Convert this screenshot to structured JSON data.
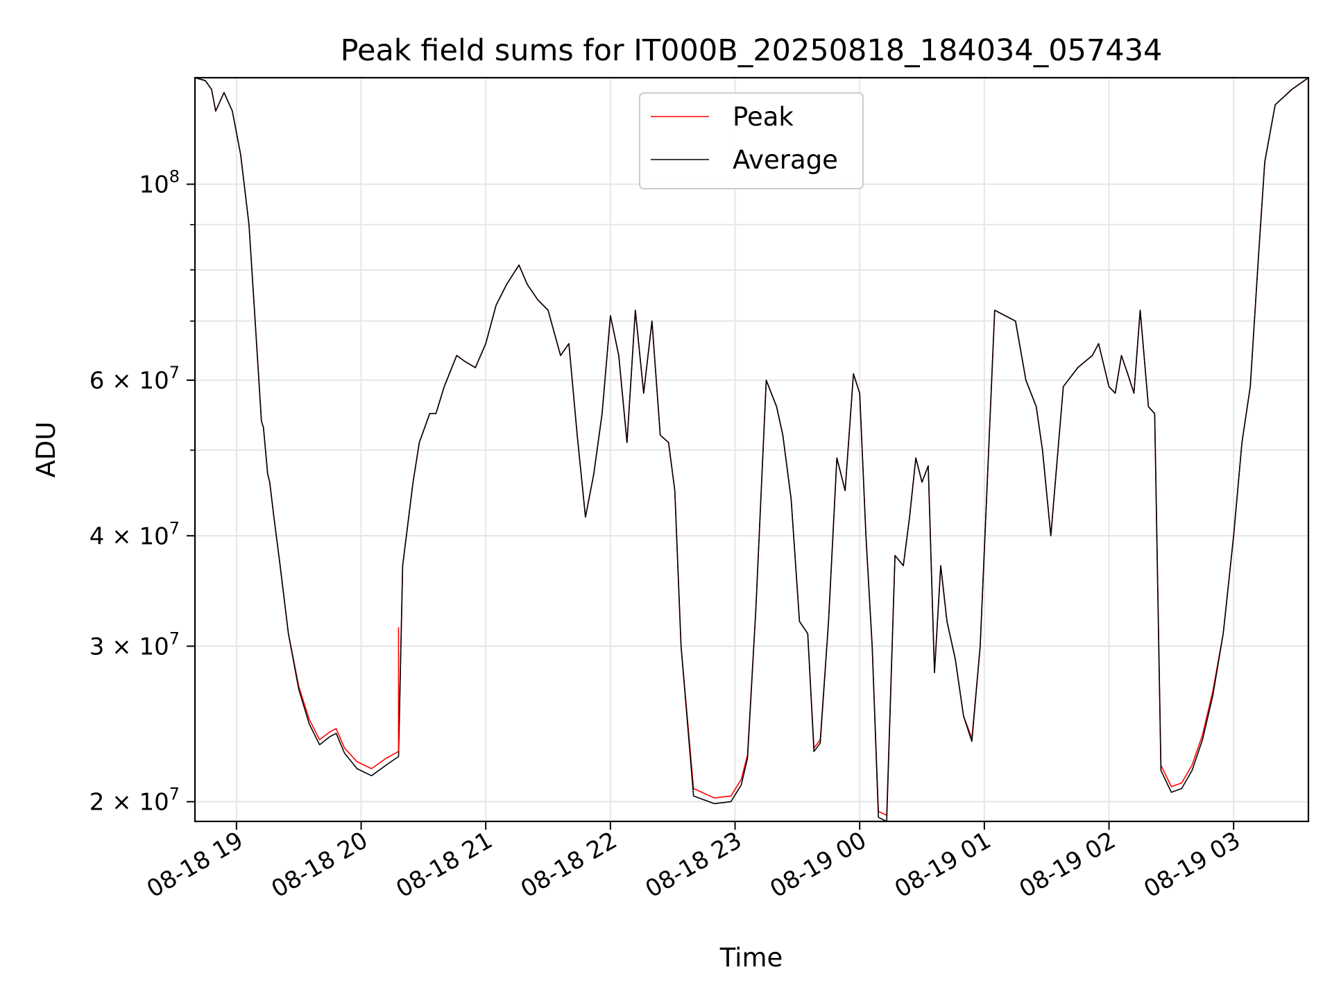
{
  "chart_data": {
    "type": "line",
    "title": "Peak field sums for IT000B_20250818_184034_057434",
    "xlabel": "Time",
    "ylabel": "ADU",
    "y_scale": "log",
    "ylim": [
      19000000,
      132000000
    ],
    "xlim": [
      "2025-08-18 18:40",
      "2025-08-19 03:36"
    ],
    "grid": true,
    "legend_position": "top-center",
    "x_ticks": [
      {
        "value": "2025-08-18 19:00",
        "label": "08-18 19"
      },
      {
        "value": "2025-08-18 20:00",
        "label": "08-18 20"
      },
      {
        "value": "2025-08-18 21:00",
        "label": "08-18 21"
      },
      {
        "value": "2025-08-18 22:00",
        "label": "08-18 22"
      },
      {
        "value": "2025-08-18 23:00",
        "label": "08-18 23"
      },
      {
        "value": "2025-08-19 00:00",
        "label": "08-19 00"
      },
      {
        "value": "2025-08-19 01:00",
        "label": "08-19 01"
      },
      {
        "value": "2025-08-19 02:00",
        "label": "08-19 02"
      },
      {
        "value": "2025-08-19 03:00",
        "label": "08-19 03"
      }
    ],
    "y_ticks": [
      {
        "value": 20000000,
        "mantissa": "2 × ",
        "base": "10",
        "exp": "7"
      },
      {
        "value": 30000000,
        "mantissa": "3 × ",
        "base": "10",
        "exp": "7"
      },
      {
        "value": 40000000,
        "mantissa": "4 × ",
        "base": "10",
        "exp": "7"
      },
      {
        "value": 60000000,
        "mantissa": "6 × ",
        "base": "10",
        "exp": "7"
      },
      {
        "value": 100000000,
        "mantissa": "",
        "base": "10",
        "exp": "8"
      }
    ],
    "x": [
      "2025-08-18 18:40",
      "2025-08-18 18:45",
      "2025-08-18 18:48",
      "2025-08-18 18:50",
      "2025-08-18 18:54",
      "2025-08-18 18:58",
      "2025-08-18 19:02",
      "2025-08-18 19:06",
      "2025-08-18 19:09",
      "2025-08-18 19:12",
      "2025-08-18 19:13",
      "2025-08-18 19:15",
      "2025-08-18 19:16",
      "2025-08-18 19:18",
      "2025-08-18 19:21",
      "2025-08-18 19:25",
      "2025-08-18 19:30",
      "2025-08-18 19:35",
      "2025-08-18 19:40",
      "2025-08-18 19:45",
      "2025-08-18 19:48",
      "2025-08-18 19:52",
      "2025-08-18 19:58",
      "2025-08-18 20:05",
      "2025-08-18 20:12",
      "2025-08-18 20:18",
      "2025-08-18 20:20",
      "2025-08-18 20:25",
      "2025-08-18 20:28",
      "2025-08-18 20:33",
      "2025-08-18 20:36",
      "2025-08-18 20:40",
      "2025-08-18 20:46",
      "2025-08-18 20:50",
      "2025-08-18 20:55",
      "2025-08-18 21:00",
      "2025-08-18 21:05",
      "2025-08-18 21:10",
      "2025-08-18 21:16",
      "2025-08-18 21:20",
      "2025-08-18 21:25",
      "2025-08-18 21:30",
      "2025-08-18 21:36",
      "2025-08-18 21:40",
      "2025-08-18 21:44",
      "2025-08-18 21:48",
      "2025-08-18 21:52",
      "2025-08-18 21:56",
      "2025-08-18 22:00",
      "2025-08-18 22:04",
      "2025-08-18 22:08",
      "2025-08-18 22:12",
      "2025-08-18 22:16",
      "2025-08-18 22:20",
      "2025-08-18 22:24",
      "2025-08-18 22:28",
      "2025-08-18 22:31",
      "2025-08-18 22:34",
      "2025-08-18 22:40",
      "2025-08-18 22:50",
      "2025-08-18 22:58",
      "2025-08-18 23:03",
      "2025-08-18 23:06",
      "2025-08-18 23:10",
      "2025-08-18 23:15",
      "2025-08-18 23:20",
      "2025-08-18 23:23",
      "2025-08-18 23:27",
      "2025-08-18 23:31",
      "2025-08-18 23:35",
      "2025-08-18 23:38",
      "2025-08-18 23:41",
      "2025-08-18 23:45",
      "2025-08-18 23:49",
      "2025-08-18 23:53",
      "2025-08-18 23:57",
      "2025-08-19 00:00",
      "2025-08-19 00:03",
      "2025-08-19 00:06",
      "2025-08-19 00:09",
      "2025-08-19 00:13",
      "2025-08-19 00:17",
      "2025-08-19 00:21",
      "2025-08-19 00:24",
      "2025-08-19 00:27",
      "2025-08-19 00:30",
      "2025-08-19 00:33",
      "2025-08-19 00:36",
      "2025-08-19 00:39",
      "2025-08-19 00:42",
      "2025-08-19 00:46",
      "2025-08-19 00:50",
      "2025-08-19 00:54",
      "2025-08-19 00:58",
      "2025-08-19 01:05",
      "2025-08-19 01:10",
      "2025-08-19 01:15",
      "2025-08-19 01:20",
      "2025-08-19 01:25",
      "2025-08-19 01:28",
      "2025-08-19 01:32",
      "2025-08-19 01:38",
      "2025-08-19 01:45",
      "2025-08-19 01:52",
      "2025-08-19 01:55",
      "2025-08-19 02:00",
      "2025-08-19 02:03",
      "2025-08-19 02:06",
      "2025-08-19 02:09",
      "2025-08-19 02:12",
      "2025-08-19 02:15",
      "2025-08-19 02:19",
      "2025-08-19 02:22",
      "2025-08-19 02:25",
      "2025-08-19 02:30",
      "2025-08-19 02:35",
      "2025-08-19 02:40",
      "2025-08-19 02:45",
      "2025-08-19 02:50",
      "2025-08-19 02:55",
      "2025-08-19 03:00",
      "2025-08-19 03:04",
      "2025-08-19 03:08",
      "2025-08-19 03:12",
      "2025-08-19 03:15",
      "2025-08-19 03:20",
      "2025-08-19 03:28",
      "2025-08-19 03:36"
    ],
    "series": [
      {
        "name": "Peak",
        "color": "#ff0000",
        "values": [
          132000000,
          131000000,
          128000000,
          121000000,
          127000000,
          121000000,
          108000000,
          90000000,
          70000000,
          54000000,
          53000000,
          47000000,
          46000000,
          42000000,
          37000000,
          31000000,
          27000000,
          24800000,
          23500000,
          24000000,
          24200000,
          23000000,
          22200000,
          21800000,
          22400000,
          22800000,
          37000000,
          46000000,
          51000000,
          55000000,
          55000000,
          59000000,
          64000000,
          63000000,
          62000000,
          66000000,
          73000000,
          77000000,
          81000000,
          77000000,
          74000000,
          72000000,
          64000000,
          66000000,
          52000000,
          42000000,
          47000000,
          55000000,
          71000000,
          64000000,
          51000000,
          72000000,
          58000000,
          70000000,
          52000000,
          51000000,
          45000000,
          30000000,
          20700000,
          20200000,
          20300000,
          21200000,
          22600000,
          33000000,
          60000000,
          56000000,
          52000000,
          44000000,
          32000000,
          31000000,
          23000000,
          23500000,
          32000000,
          49000000,
          45000000,
          61000000,
          58000000,
          40000000,
          30000000,
          19500000,
          19300000,
          38000000,
          37000000,
          42000000,
          49000000,
          46000000,
          48000000,
          28000000,
          37000000,
          32000000,
          29000000,
          25000000,
          23600000,
          30000000,
          72000000,
          71000000,
          70000000,
          60000000,
          56000000,
          50000000,
          40000000,
          59000000,
          62000000,
          64000000,
          66000000,
          59000000,
          58000000,
          64000000,
          61000000,
          58000000,
          72000000,
          56000000,
          55000000,
          22000000,
          20800000,
          21000000,
          22000000,
          23800000,
          26700000,
          31000000,
          40000000,
          51000000,
          59000000,
          83000000,
          106000000,
          123000000,
          128000000,
          132000000
        ]
      },
      {
        "name": "Average",
        "color": "#000000",
        "values": [
          132000000,
          131000000,
          128000000,
          121000000,
          127000000,
          121000000,
          108000000,
          90000000,
          70000000,
          54000000,
          53000000,
          47000000,
          46000000,
          42000000,
          37000000,
          31000000,
          26800000,
          24500000,
          23200000,
          23700000,
          23900000,
          22700000,
          21800000,
          21400000,
          22000000,
          22500000,
          37000000,
          46000000,
          51000000,
          55000000,
          55000000,
          59000000,
          64000000,
          63000000,
          62000000,
          66000000,
          73000000,
          77000000,
          81000000,
          77000000,
          74000000,
          72000000,
          64000000,
          66000000,
          52000000,
          42000000,
          47000000,
          55000000,
          71000000,
          64000000,
          51000000,
          72000000,
          58000000,
          70000000,
          52000000,
          51000000,
          45000000,
          30000000,
          20300000,
          19900000,
          20000000,
          20900000,
          22400000,
          33000000,
          60000000,
          56000000,
          52000000,
          44000000,
          32000000,
          31000000,
          22800000,
          23300000,
          32000000,
          49000000,
          45000000,
          61000000,
          58000000,
          40000000,
          30000000,
          19200000,
          19000000,
          38000000,
          37000000,
          42000000,
          49000000,
          46000000,
          48000000,
          28000000,
          37000000,
          32000000,
          29000000,
          25000000,
          23400000,
          30000000,
          72000000,
          71000000,
          70000000,
          60000000,
          56000000,
          50000000,
          40000000,
          59000000,
          62000000,
          64000000,
          66000000,
          59000000,
          58000000,
          64000000,
          61000000,
          58000000,
          72000000,
          56000000,
          55000000,
          21700000,
          20500000,
          20700000,
          21700000,
          23500000,
          26400000,
          31000000,
          40000000,
          51000000,
          59000000,
          83000000,
          106000000,
          123000000,
          128000000,
          132000000
        ]
      }
    ],
    "annotations": [
      {
        "series": "Peak",
        "type": "spike",
        "x": "2025-08-18 20:18",
        "y": 31500000
      }
    ]
  }
}
